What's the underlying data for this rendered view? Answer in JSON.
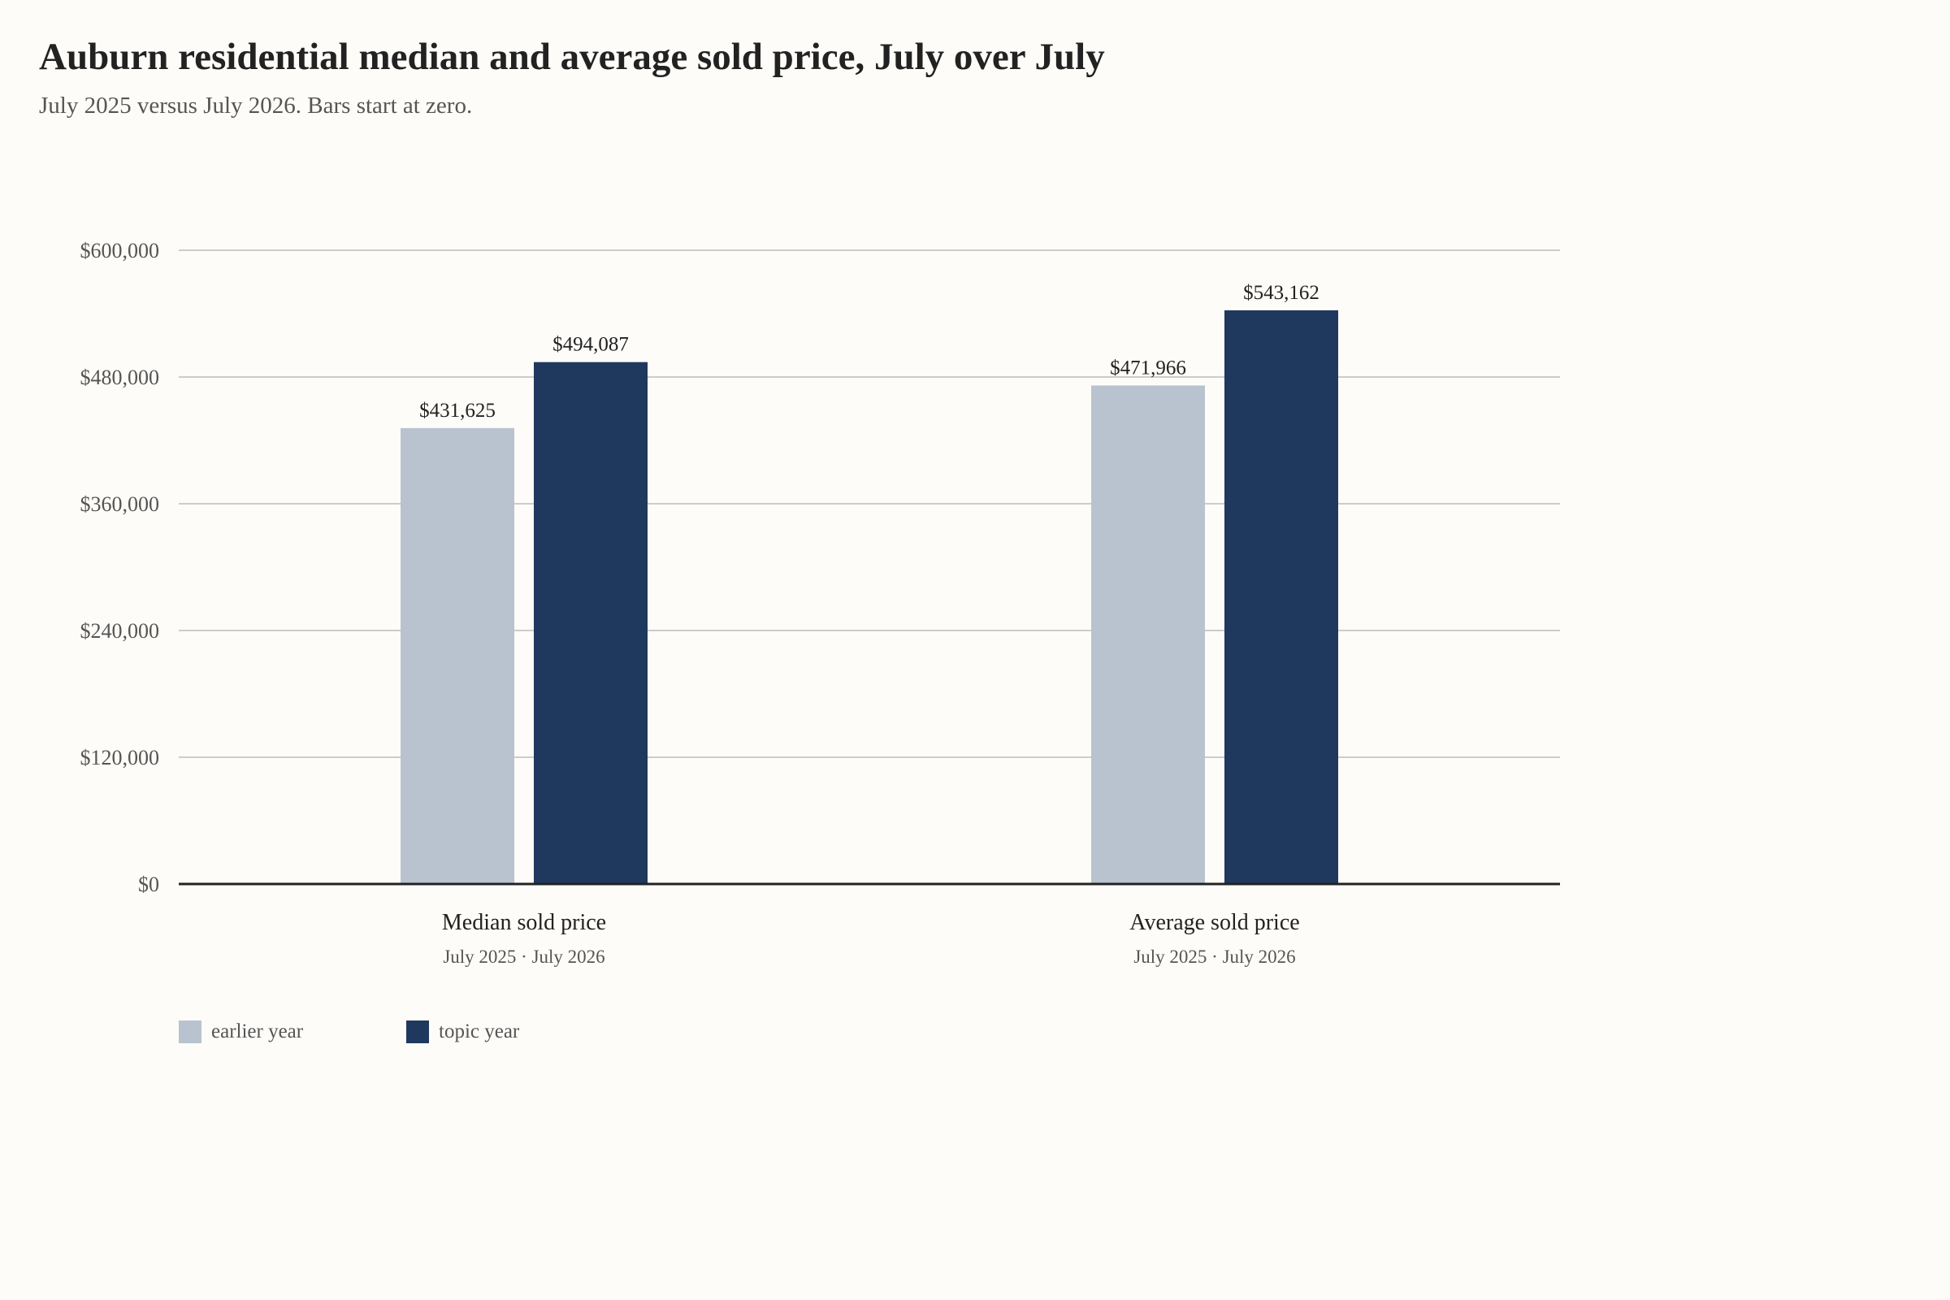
{
  "title": "Auburn residential median and average sold price, July over July",
  "subtitle": "July 2025 versus July 2026. Bars start at zero.",
  "colors": {
    "background": "#fdfcf8",
    "earlier": "#b8c3cf",
    "topic": "#1f385d",
    "grid": "#cccccc",
    "axis": "#222222"
  },
  "chart_data": {
    "type": "bar",
    "title": "Auburn residential median and average sold price, July over July",
    "subtitle": "July 2025 versus July 2026. Bars start at zero.",
    "categories": [
      "Median sold price",
      "Average sold price"
    ],
    "category_sublabels": [
      "July 2025 · July 2026",
      "July 2025 · July 2026"
    ],
    "series": [
      {
        "name": "earlier year",
        "values": [
          431625,
          471966
        ],
        "labels": [
          "$431,625",
          "$471,966"
        ]
      },
      {
        "name": "topic year",
        "values": [
          494087,
          543162
        ],
        "labels": [
          "$494,087",
          "$543,162"
        ]
      }
    ],
    "ylim": [
      0,
      600000
    ],
    "yticks": [
      0,
      120000,
      240000,
      360000,
      480000,
      600000
    ],
    "ytick_labels": [
      "$0",
      "$120,000",
      "$240,000",
      "$360,000",
      "$480,000",
      "$600,000"
    ],
    "xlabel": "",
    "ylabel": "",
    "grid": true,
    "legend_position": "bottom-left"
  },
  "legend": {
    "earlier_label": "earlier year",
    "topic_label": "topic year"
  }
}
